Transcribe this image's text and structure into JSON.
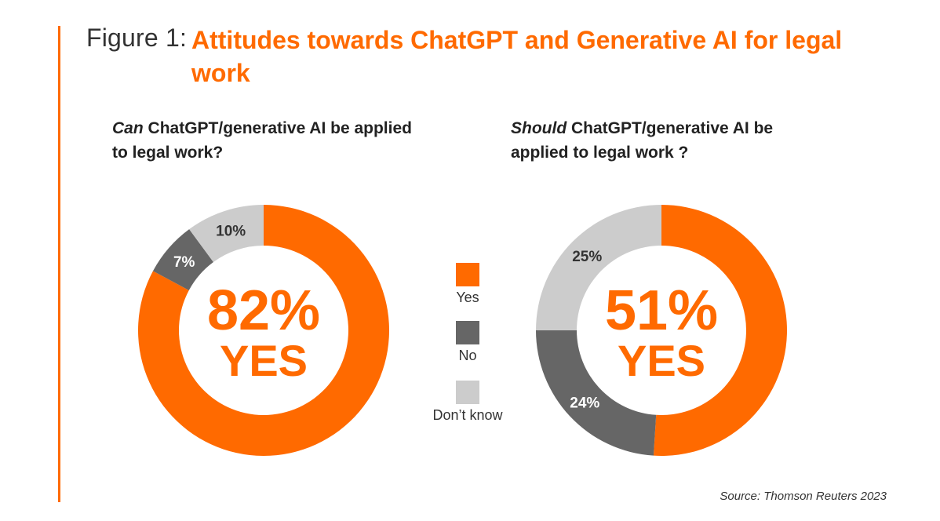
{
  "figure_label": "Figure 1:",
  "title": "Attitudes towards ChatGPT and Generative AI for legal work",
  "colors": {
    "accent": "#ff6a00",
    "yes": "#ff6a00",
    "no": "#666666",
    "dont_know": "#cccccc"
  },
  "legend": [
    {
      "label": "Yes",
      "color": "#ff6a00"
    },
    {
      "label": "No",
      "color": "#666666"
    },
    {
      "label": "Don’t know",
      "color": "#cccccc"
    }
  ],
  "chart_data": [
    {
      "type": "pie",
      "variant": "donut",
      "question_emphasis": "Can",
      "question_rest": " ChatGPT/generative AI be applied to legal work?",
      "center_value": "82%",
      "center_label": "YES",
      "categories": [
        "Yes",
        "No",
        "Don’t know"
      ],
      "values": [
        82,
        7,
        10
      ],
      "slice_labels": [
        "",
        "7%",
        "10%"
      ]
    },
    {
      "type": "pie",
      "variant": "donut",
      "question_emphasis": "Should",
      "question_rest": " ChatGPT/generative AI be applied to legal work ?",
      "center_value": "51%",
      "center_label": "YES",
      "categories": [
        "Yes",
        "No",
        "Don’t know"
      ],
      "values": [
        51,
        24,
        25
      ],
      "slice_labels": [
        "",
        "24%",
        "25%"
      ]
    }
  ],
  "source": "Source: Thomson Reuters 2023"
}
